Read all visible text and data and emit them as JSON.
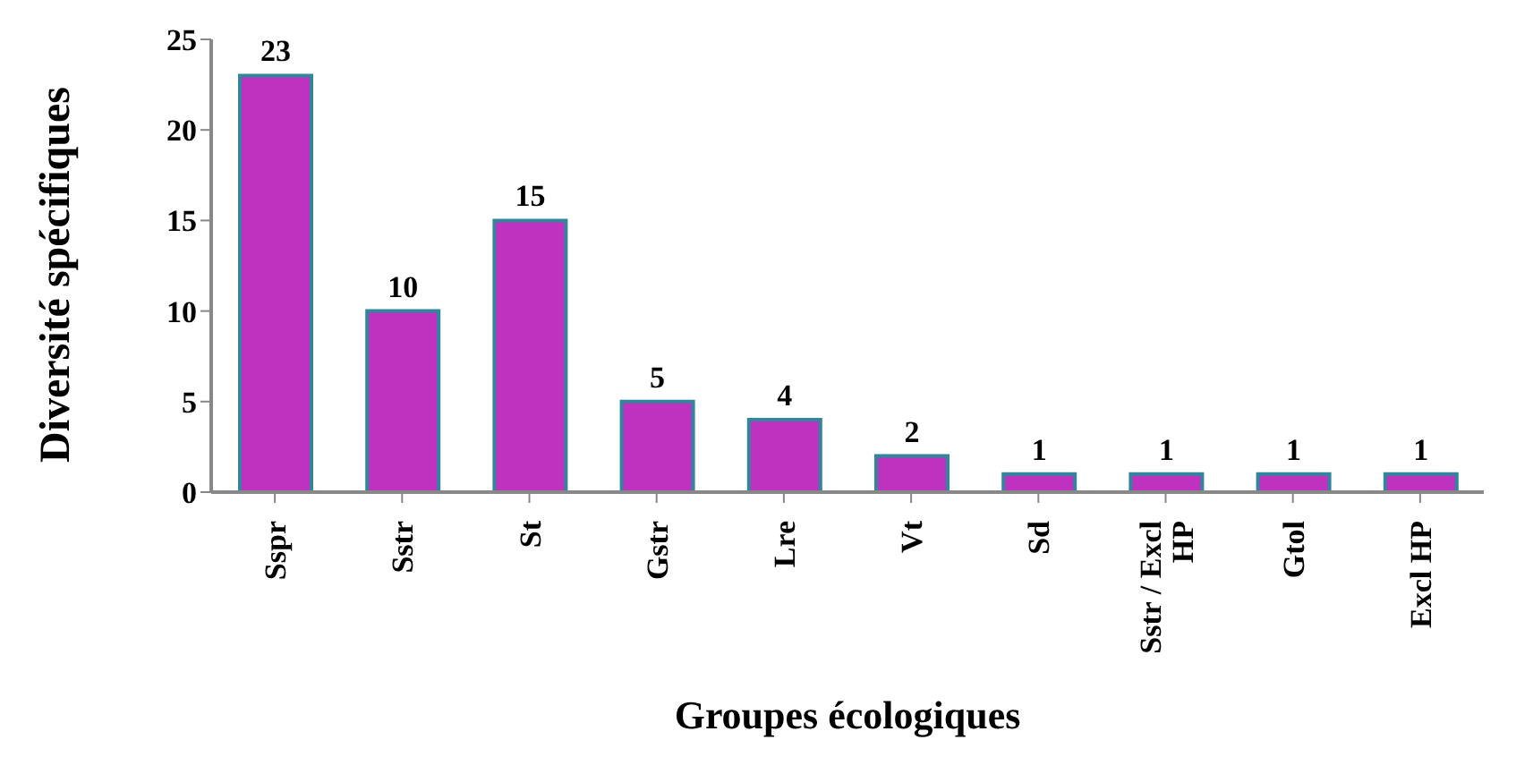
{
  "chart_data": {
    "type": "bar",
    "xlabel": "Groupes  écologiques",
    "ylabel": "Diversité  spécifiques",
    "categories": [
      "Sspr",
      "Sstr",
      "St",
      "Gstr",
      "Lre",
      "Vt",
      "Sd",
      "Sstr / Excl HP",
      "Gtol",
      "Excl HP"
    ],
    "values": [
      23,
      10,
      15,
      5,
      4,
      2,
      1,
      1,
      1,
      1
    ],
    "color": "#bf32bf",
    "ylim": [
      0,
      25
    ],
    "yticks": [
      0,
      5,
      10,
      15,
      20,
      25
    ],
    "grid": false,
    "data_labels": true
  }
}
